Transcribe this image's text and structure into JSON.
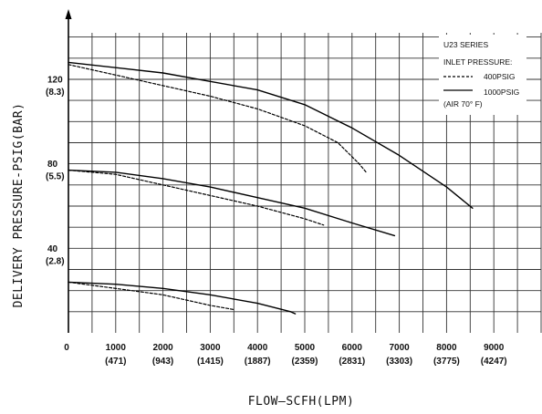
{
  "chart_data": {
    "type": "line",
    "xlabel": "FLOW—SCFH(LPM)",
    "ylabel": "DELIVERY PRESSURE-PSIG(BAR)",
    "xlim": [
      0,
      10000
    ],
    "ylim": [
      0,
      142
    ],
    "grid": true,
    "x_ticks": [
      {
        "value": 0,
        "label": "0",
        "sub": ""
      },
      {
        "value": 1000,
        "label": "1000",
        "sub": "(471)"
      },
      {
        "value": 2000,
        "label": "2000",
        "sub": "(943)"
      },
      {
        "value": 3000,
        "label": "3000",
        "sub": "(1415)"
      },
      {
        "value": 4000,
        "label": "4000",
        "sub": "(1887)"
      },
      {
        "value": 5000,
        "label": "5000",
        "sub": "(2359)"
      },
      {
        "value": 6000,
        "label": "6000",
        "sub": "(2831)"
      },
      {
        "value": 7000,
        "label": "7000",
        "sub": "(3303)"
      },
      {
        "value": 8000,
        "label": "8000",
        "sub": "(3775)"
      },
      {
        "value": 9000,
        "label": "9000",
        "sub": "(4247)"
      }
    ],
    "y_ticks": [
      {
        "value": 40,
        "label": "40",
        "sub": "(2.8)"
      },
      {
        "value": 80,
        "label": "80",
        "sub": "(5.5)"
      },
      {
        "value": 120,
        "label": "120",
        "sub": "(8.3)"
      }
    ],
    "legend": {
      "position": "top-right",
      "title": "U23 SERIES",
      "subtitle": "INLET PRESSURE:",
      "note": "(AIR 70° F)",
      "entries": [
        {
          "label": "400PSIG",
          "style": "dashed"
        },
        {
          "label": "1000PSIG",
          "style": "solid"
        }
      ]
    },
    "series": [
      {
        "name": "1000PSIG",
        "style": "solid",
        "points": [
          [
            0,
            128
          ],
          [
            2000,
            123
          ],
          [
            3000,
            119
          ],
          [
            4000,
            115
          ],
          [
            5000,
            108
          ],
          [
            6000,
            97
          ],
          [
            7000,
            84
          ],
          [
            8000,
            69
          ],
          [
            8550,
            59
          ]
        ]
      },
      {
        "name": "400PSIG",
        "style": "dashed",
        "points": [
          [
            0,
            127
          ],
          [
            1000,
            122
          ],
          [
            2000,
            117
          ],
          [
            3000,
            112
          ],
          [
            4000,
            106
          ],
          [
            5000,
            98
          ],
          [
            5700,
            90
          ],
          [
            6150,
            80
          ],
          [
            6300,
            76
          ]
        ]
      },
      {
        "name": "1000PSIG",
        "style": "solid",
        "points": [
          [
            0,
            77
          ],
          [
            1000,
            76
          ],
          [
            2000,
            73
          ],
          [
            3000,
            69
          ],
          [
            4000,
            64
          ],
          [
            5000,
            59
          ],
          [
            6000,
            52
          ],
          [
            6900,
            46
          ]
        ]
      },
      {
        "name": "400PSIG",
        "style": "dashed",
        "points": [
          [
            0,
            77
          ],
          [
            1000,
            75
          ],
          [
            2000,
            70
          ],
          [
            3000,
            65
          ],
          [
            4000,
            60
          ],
          [
            5000,
            54
          ],
          [
            5400,
            51
          ]
        ]
      },
      {
        "name": "1000PSIG",
        "style": "solid",
        "points": [
          [
            0,
            24
          ],
          [
            1000,
            23
          ],
          [
            2000,
            21
          ],
          [
            3000,
            18
          ],
          [
            4000,
            14
          ],
          [
            4700,
            10
          ],
          [
            4800,
            9
          ]
        ]
      },
      {
        "name": "400PSIG",
        "style": "dashed",
        "points": [
          [
            0,
            24
          ],
          [
            1000,
            21
          ],
          [
            2000,
            18
          ],
          [
            3000,
            13
          ],
          [
            3500,
            11
          ]
        ]
      }
    ]
  }
}
